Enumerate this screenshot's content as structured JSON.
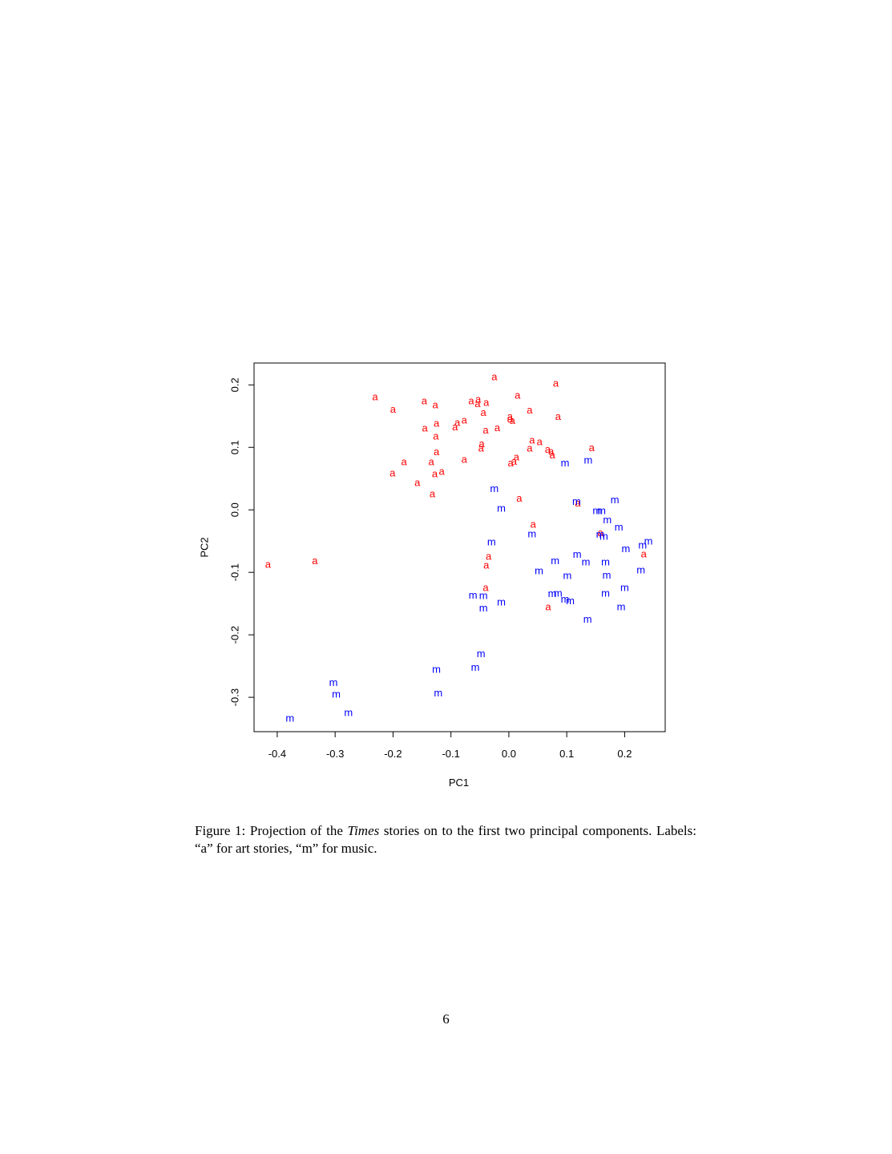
{
  "caption": {
    "prefix": "Figure 1: Projection of the ",
    "italic": "Times",
    "suffix": " stories on to the first two principal components. Labels: “a” for art stories, “m” for music."
  },
  "page_number": "6",
  "chart_data": {
    "type": "scatter",
    "xlabel": "PC1",
    "ylabel": "PC2",
    "xlim": [
      -0.44,
      0.27
    ],
    "ylim": [
      -0.355,
      0.235
    ],
    "xticks": [
      -0.4,
      -0.3,
      -0.2,
      -0.1,
      0.0,
      0.1,
      0.2
    ],
    "xtick_labels": [
      "-0.4",
      "-0.3",
      "-0.2",
      "-0.1",
      "0.0",
      "0.1",
      "0.2"
    ],
    "yticks": [
      -0.3,
      -0.2,
      -0.1,
      0.0,
      0.1,
      0.2
    ],
    "ytick_labels": [
      "-0.3",
      "-0.2",
      "-0.1",
      "0.0",
      "0.1",
      "0.2"
    ],
    "grid": false,
    "series": [
      {
        "marker": "a",
        "color": "#ff0000",
        "points": [
          [
            -0.025,
            0.213
          ],
          [
            0.081,
            0.203
          ],
          [
            -0.231,
            0.181
          ],
          [
            -0.146,
            0.175
          ],
          [
            -0.127,
            0.168
          ],
          [
            -0.065,
            0.175
          ],
          [
            -0.053,
            0.177
          ],
          [
            -0.054,
            0.17
          ],
          [
            -0.039,
            0.172
          ],
          [
            0.015,
            0.184
          ],
          [
            -0.2,
            0.161
          ],
          [
            -0.044,
            0.156
          ],
          [
            0.036,
            0.16
          ],
          [
            0.085,
            0.15
          ],
          [
            0.002,
            0.15
          ],
          [
            0.006,
            0.143
          ],
          [
            0.002,
            0.146
          ],
          [
            -0.125,
            0.139
          ],
          [
            -0.077,
            0.144
          ],
          [
            -0.089,
            0.14
          ],
          [
            -0.093,
            0.133
          ],
          [
            -0.145,
            0.131
          ],
          [
            -0.04,
            0.128
          ],
          [
            -0.02,
            0.132
          ],
          [
            -0.126,
            0.118
          ],
          [
            0.04,
            0.112
          ],
          [
            0.053,
            0.109
          ],
          [
            -0.047,
            0.106
          ],
          [
            -0.048,
            0.099
          ],
          [
            0.143,
            0.1
          ],
          [
            0.036,
            0.099
          ],
          [
            0.067,
            0.097
          ],
          [
            0.073,
            0.094
          ],
          [
            0.075,
            0.088
          ],
          [
            -0.125,
            0.093
          ],
          [
            0.013,
            0.085
          ],
          [
            0.009,
            0.078
          ],
          [
            0.003,
            0.075
          ],
          [
            -0.181,
            0.077
          ],
          [
            -0.134,
            0.077
          ],
          [
            -0.077,
            0.081
          ],
          [
            -0.116,
            0.062
          ],
          [
            -0.128,
            0.058
          ],
          [
            -0.201,
            0.059
          ],
          [
            -0.158,
            0.044
          ],
          [
            -0.132,
            0.026
          ],
          [
            0.018,
            0.019
          ],
          [
            0.119,
            0.011
          ],
          [
            0.042,
            -0.023
          ],
          [
            0.158,
            -0.036
          ],
          [
            -0.035,
            -0.074
          ],
          [
            -0.039,
            -0.088
          ],
          [
            0.233,
            -0.07
          ],
          [
            -0.416,
            -0.087
          ],
          [
            -0.335,
            -0.081
          ],
          [
            -0.04,
            -0.124
          ],
          [
            0.068,
            -0.155
          ]
        ]
      },
      {
        "marker": "m",
        "color": "#0000ff",
        "points": [
          [
            0.097,
            0.075
          ],
          [
            0.137,
            0.08
          ],
          [
            -0.025,
            0.034
          ],
          [
            -0.013,
            0.003
          ],
          [
            0.117,
            0.014
          ],
          [
            0.183,
            0.016
          ],
          [
            0.152,
            -0.001
          ],
          [
            0.16,
            -0.001
          ],
          [
            0.17,
            -0.016
          ],
          [
            0.19,
            -0.027
          ],
          [
            0.158,
            -0.039
          ],
          [
            0.164,
            -0.042
          ],
          [
            0.04,
            -0.038
          ],
          [
            -0.03,
            -0.051
          ],
          [
            0.241,
            -0.05
          ],
          [
            0.231,
            -0.056
          ],
          [
            0.202,
            -0.062
          ],
          [
            0.118,
            -0.071
          ],
          [
            0.08,
            -0.081
          ],
          [
            0.133,
            -0.083
          ],
          [
            0.167,
            -0.083
          ],
          [
            0.052,
            -0.097
          ],
          [
            0.101,
            -0.105
          ],
          [
            0.169,
            -0.104
          ],
          [
            0.228,
            -0.096
          ],
          [
            0.2,
            -0.124
          ],
          [
            0.167,
            -0.133
          ],
          [
            0.075,
            -0.134
          ],
          [
            0.085,
            -0.133
          ],
          [
            -0.062,
            -0.136
          ],
          [
            -0.044,
            -0.137
          ],
          [
            0.097,
            -0.143
          ],
          [
            0.106,
            -0.145
          ],
          [
            -0.013,
            -0.147
          ],
          [
            -0.044,
            -0.157
          ],
          [
            0.194,
            -0.155
          ],
          [
            0.136,
            -0.175
          ],
          [
            -0.048,
            -0.23
          ],
          [
            -0.058,
            -0.252
          ],
          [
            -0.125,
            -0.255
          ],
          [
            -0.122,
            -0.293
          ],
          [
            -0.303,
            -0.276
          ],
          [
            -0.298,
            -0.295
          ],
          [
            -0.277,
            -0.324
          ],
          [
            -0.378,
            -0.333
          ]
        ]
      }
    ]
  }
}
